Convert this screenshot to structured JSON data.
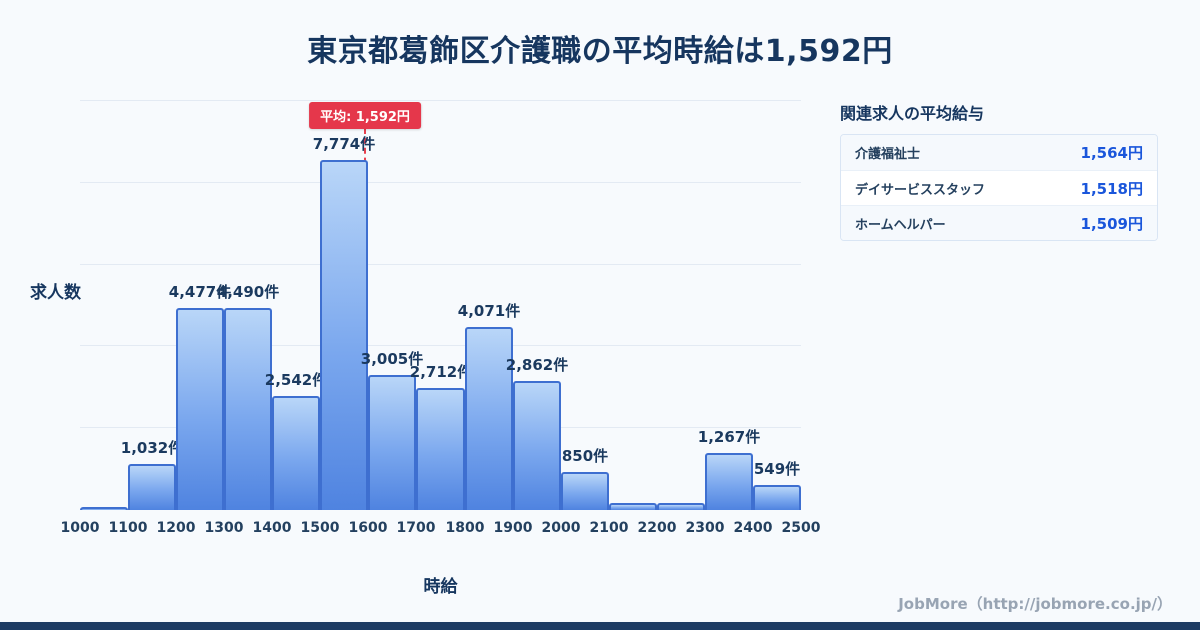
{
  "page": {
    "title": "東京都葛飾区介護職の平均時給は1,592円"
  },
  "chart_data": {
    "type": "bar",
    "title": "東京都葛飾区介護職の平均時給は1,592円",
    "xlabel": "時給",
    "ylabel": "求人数",
    "x_ticks": [
      1000,
      1100,
      1200,
      1300,
      1400,
      1500,
      1600,
      1700,
      1800,
      1900,
      2000,
      2100,
      2200,
      2300,
      2400,
      2500
    ],
    "values": [
      60,
      1032,
      4477,
      4490,
      2542,
      7774,
      3005,
      2712,
      4071,
      2862,
      850,
      150,
      160,
      1267,
      549
    ],
    "labels": [
      "",
      "1,032件",
      "4,477件",
      "4,490件",
      "2,542件",
      "7,774件",
      "3,005件",
      "2,712件",
      "4,071件",
      "2,862件",
      "850件",
      "",
      "",
      "1,267件",
      "549件"
    ],
    "ylim": [
      0,
      7774
    ],
    "grid": "horizontal",
    "average": {
      "value": 1592,
      "label": "平均: 1,592円"
    }
  },
  "related_panel": {
    "title": "関連求人の平均給与",
    "rows": [
      {
        "name": "介護福祉士",
        "value": "1,564円"
      },
      {
        "name": "デイサービススタッフ",
        "value": "1,518円"
      },
      {
        "name": "ホームヘルパー",
        "value": "1,509円"
      }
    ]
  },
  "footer": {
    "credit": "JobMore（http://jobmore.co.jp/）"
  },
  "colors": {
    "accent_blue": "#1a56db",
    "bar_border": "#3e6fd0",
    "average_red": "#e5374b",
    "navy": "#16365f"
  }
}
